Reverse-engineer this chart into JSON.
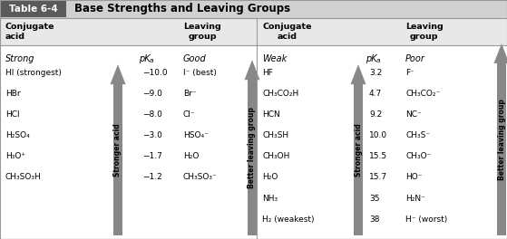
{
  "title_box": "Table 6-4",
  "title_text": "Base Strengths and Leaving Groups",
  "header_col1": "Conjugate\nacid",
  "header_col3": "Leaving\ngroup",
  "header_col4": "Conjugate\nacid",
  "header_col6": "Leaving\ngroup",
  "left_category": "Strong",
  "right_category": "Weak",
  "left_good": "Good",
  "right_poor": "Poor",
  "left_data": [
    [
      "HI (strongest)",
      "−10.0",
      "I⁻ (best)"
    ],
    [
      "HBr",
      "−9.0",
      "Br⁻"
    ],
    [
      "HCl",
      "−8.0",
      "Cl⁻"
    ],
    [
      "H₂SO₄",
      "−3.0",
      "HSO₄⁻"
    ],
    [
      "H₃O⁺",
      "−1.7",
      "H₂O"
    ],
    [
      "CH₃SO₃H",
      "−1.2",
      "CH₃SO₃⁻"
    ]
  ],
  "right_data": [
    [
      "HF",
      "3.2",
      "F⁻"
    ],
    [
      "CH₃CO₂H",
      "4.7",
      "CH₃CO₂⁻"
    ],
    [
      "HCN",
      "9.2",
      "NC⁻"
    ],
    [
      "CH₃SH",
      "10.0",
      "CH₃S⁻"
    ],
    [
      "CH₃OH",
      "15.5",
      "CH₃O⁻"
    ],
    [
      "H₂O",
      "15.7",
      "HO⁻"
    ],
    [
      "NH₃",
      "35",
      "H₂N⁻"
    ],
    [
      "H₂ (weakest)",
      "38",
      "H⁻ (worst)"
    ]
  ],
  "arrow_label_strong": "Stronger acid",
  "arrow_label_blg": "Better leaving group",
  "bg_title_dark": "#4a4a4a",
  "bg_title_light": "#d0d0d0",
  "bg_header": "#e8e8e8",
  "bg_table": "#f5f5f5",
  "bg_body": "#ffffff",
  "arrow_color_top": "#cccccc",
  "arrow_color_bot": "#888888",
  "border_color": "#999999",
  "title_box_color": "#5a5a5a"
}
